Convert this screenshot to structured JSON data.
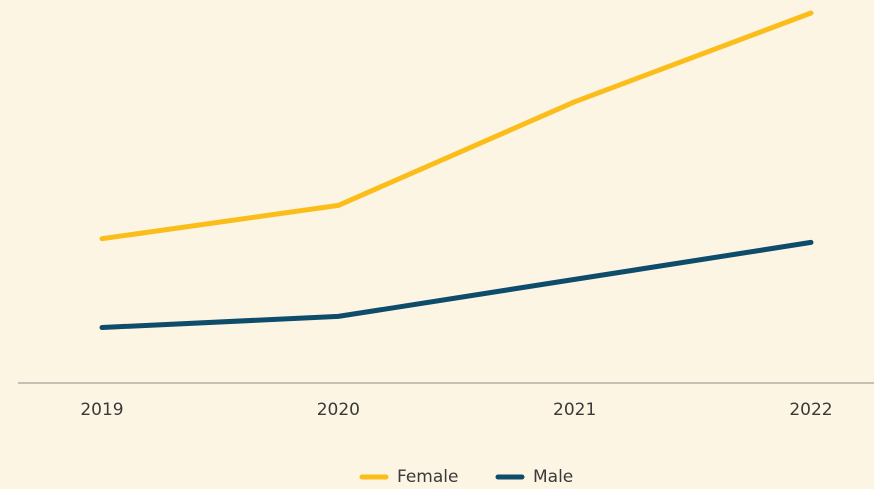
{
  "chart_data": {
    "type": "line",
    "categories": [
      "2019",
      "2020",
      "2021",
      "2022"
    ],
    "series": [
      {
        "name": "Female",
        "color": "#fbbd1a",
        "values": [
          39,
          48,
          76,
          100
        ]
      },
      {
        "name": "Male",
        "color": "#0d4c6b",
        "values": [
          15,
          18,
          28,
          38
        ]
      }
    ],
    "ylim": [
      0,
      100
    ],
    "legend": "bottom"
  }
}
